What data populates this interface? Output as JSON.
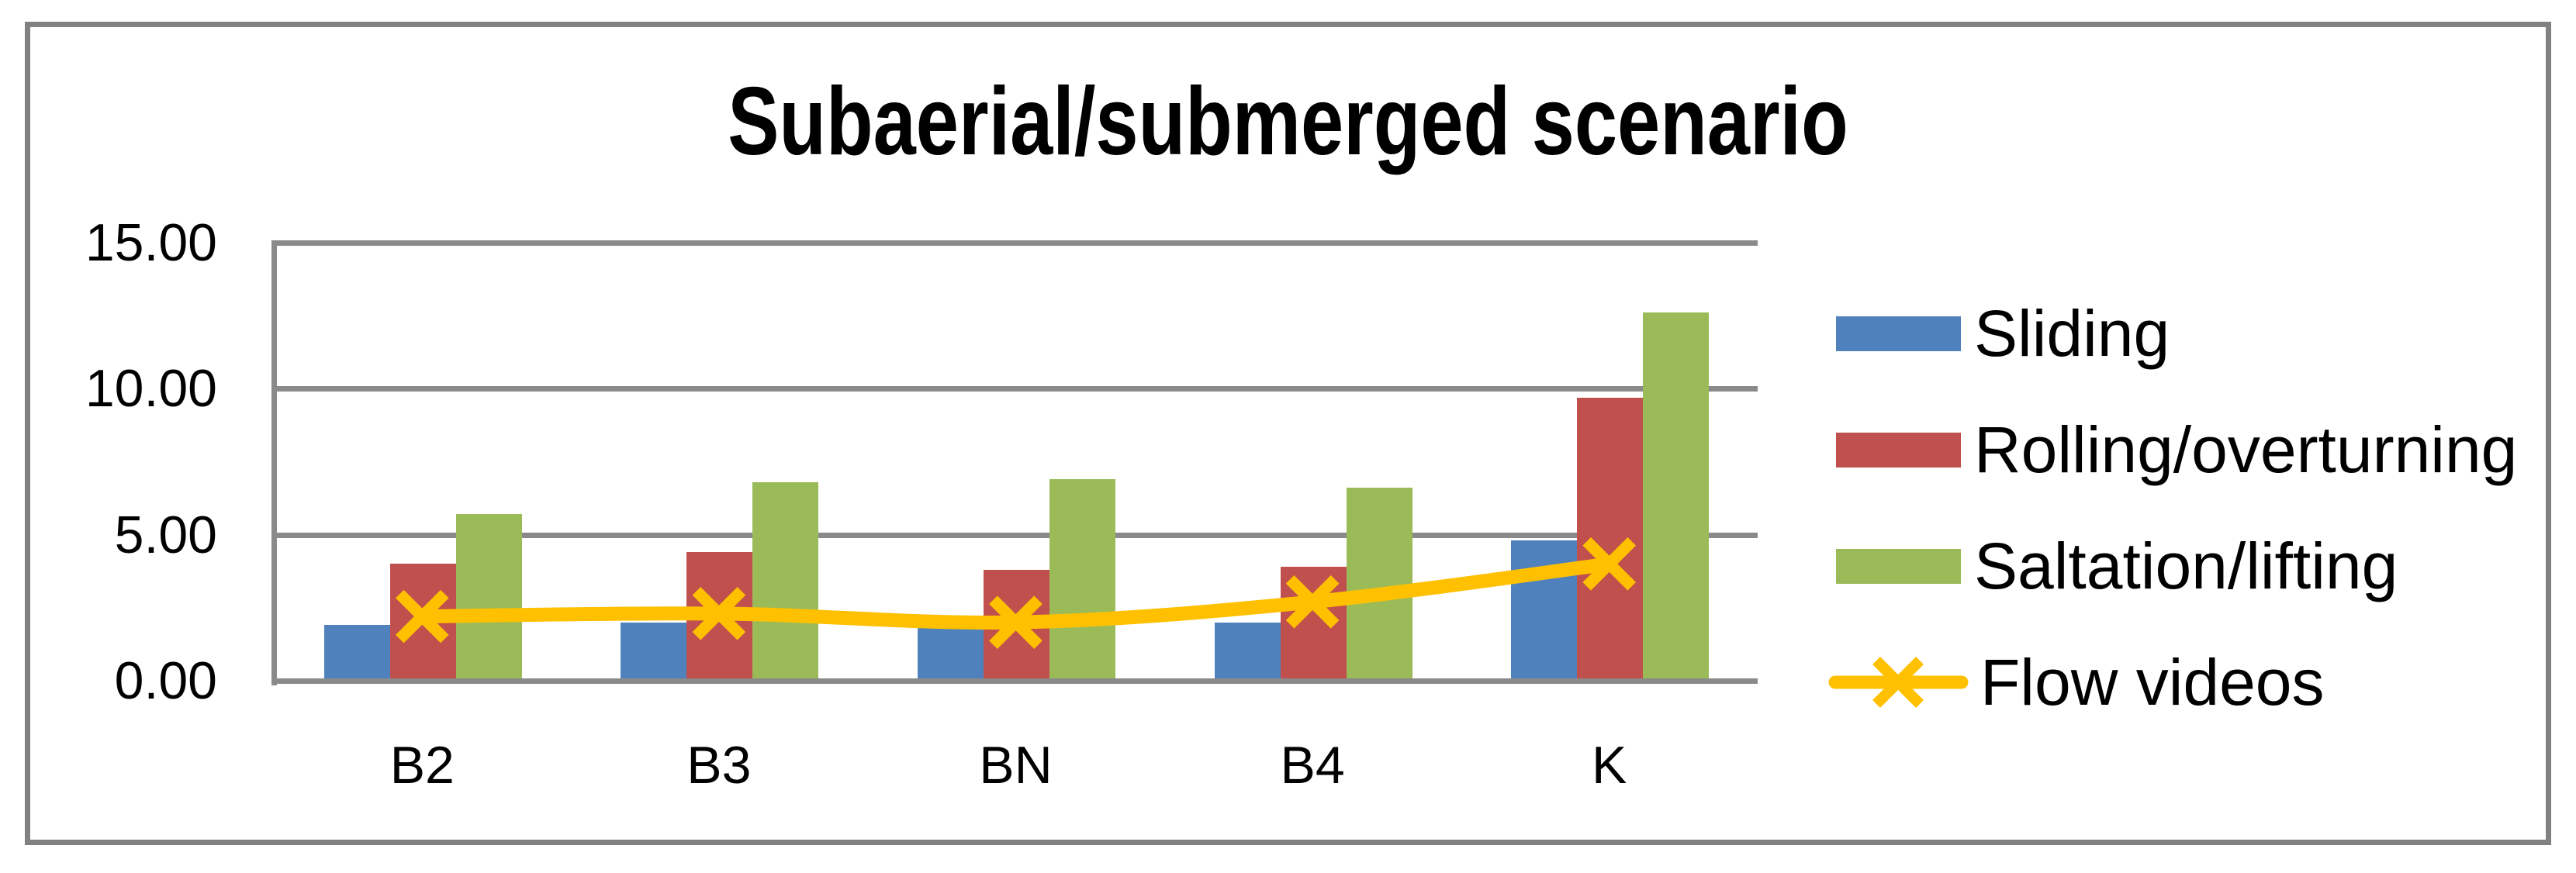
{
  "title": "Subaerial/submerged scenario",
  "chart_data": {
    "type": "bar",
    "title": "Subaerial/submerged scenario",
    "categories": [
      "B2",
      "B3",
      "BN",
      "B4",
      "K"
    ],
    "series": [
      {
        "name": "Sliding",
        "type": "bar",
        "color": "#4F81BD",
        "values": [
          1.9,
          2.0,
          1.8,
          2.0,
          4.8
        ]
      },
      {
        "name": "Rolling/overturning",
        "type": "bar",
        "color": "#C0504D",
        "values": [
          4.0,
          4.4,
          3.8,
          3.9,
          9.7
        ]
      },
      {
        "name": "Saltation/lifting",
        "type": "bar",
        "color": "#9BBB59",
        "values": [
          5.7,
          6.8,
          6.9,
          6.6,
          12.6
        ]
      },
      {
        "name": "Flow videos",
        "type": "line",
        "color": "#FFC000",
        "marker": "x",
        "values": [
          2.2,
          2.3,
          2.0,
          2.7,
          4.0
        ]
      }
    ],
    "y_axis": {
      "min": 0,
      "max": 15,
      "step": 5,
      "tick_labels": [
        "0.00",
        "5.00",
        "10.00",
        "15.00"
      ]
    },
    "xlabel": "",
    "ylabel": "",
    "grid": true,
    "legend_position": "right",
    "grid_color": "#8A8A8A",
    "frame_color": "#818181",
    "background_color": "#FFFFFF"
  }
}
